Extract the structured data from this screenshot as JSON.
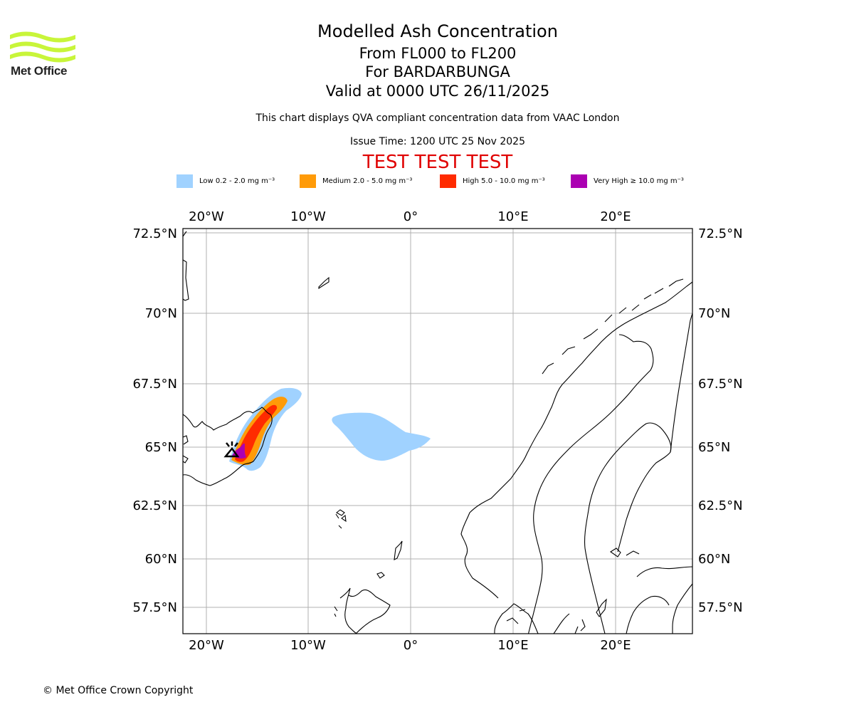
{
  "logo": {
    "name": "Met Office"
  },
  "title": {
    "main": "Modelled Ash Concentration",
    "levels": "From FL000 to FL200",
    "volcano": "For BARDARBUNGA",
    "valid": "Valid at 0000 UTC 26/11/2025"
  },
  "description": "This chart displays QVA compliant concentration data from VAAC London",
  "issue_time": "Issue Time: 1200 UTC 25 Nov 2025",
  "test_banner": "TEST TEST TEST",
  "legend": [
    {
      "label": "Low 0.2 - 2.0 mg m⁻³",
      "color": "#a0d2ff"
    },
    {
      "label": "Medium 2.0 - 5.0 mg m⁻³",
      "color": "#ff9b08"
    },
    {
      "label": "High 5.0 - 10.0 mg m⁻³",
      "color": "#ff2b00"
    },
    {
      "label": "Very High ≥ 10.0 mg m⁻³",
      "color": "#ab00b2"
    }
  ],
  "map": {
    "lon_labels": [
      "20°W",
      "10°W",
      "0°",
      "10°E",
      "20°E"
    ],
    "lat_labels": [
      "72.5°N",
      "70°N",
      "67.5°N",
      "65°N",
      "62.5°N",
      "60°N",
      "57.5°N"
    ]
  },
  "copyright": "© Met Office Crown Copyright"
}
